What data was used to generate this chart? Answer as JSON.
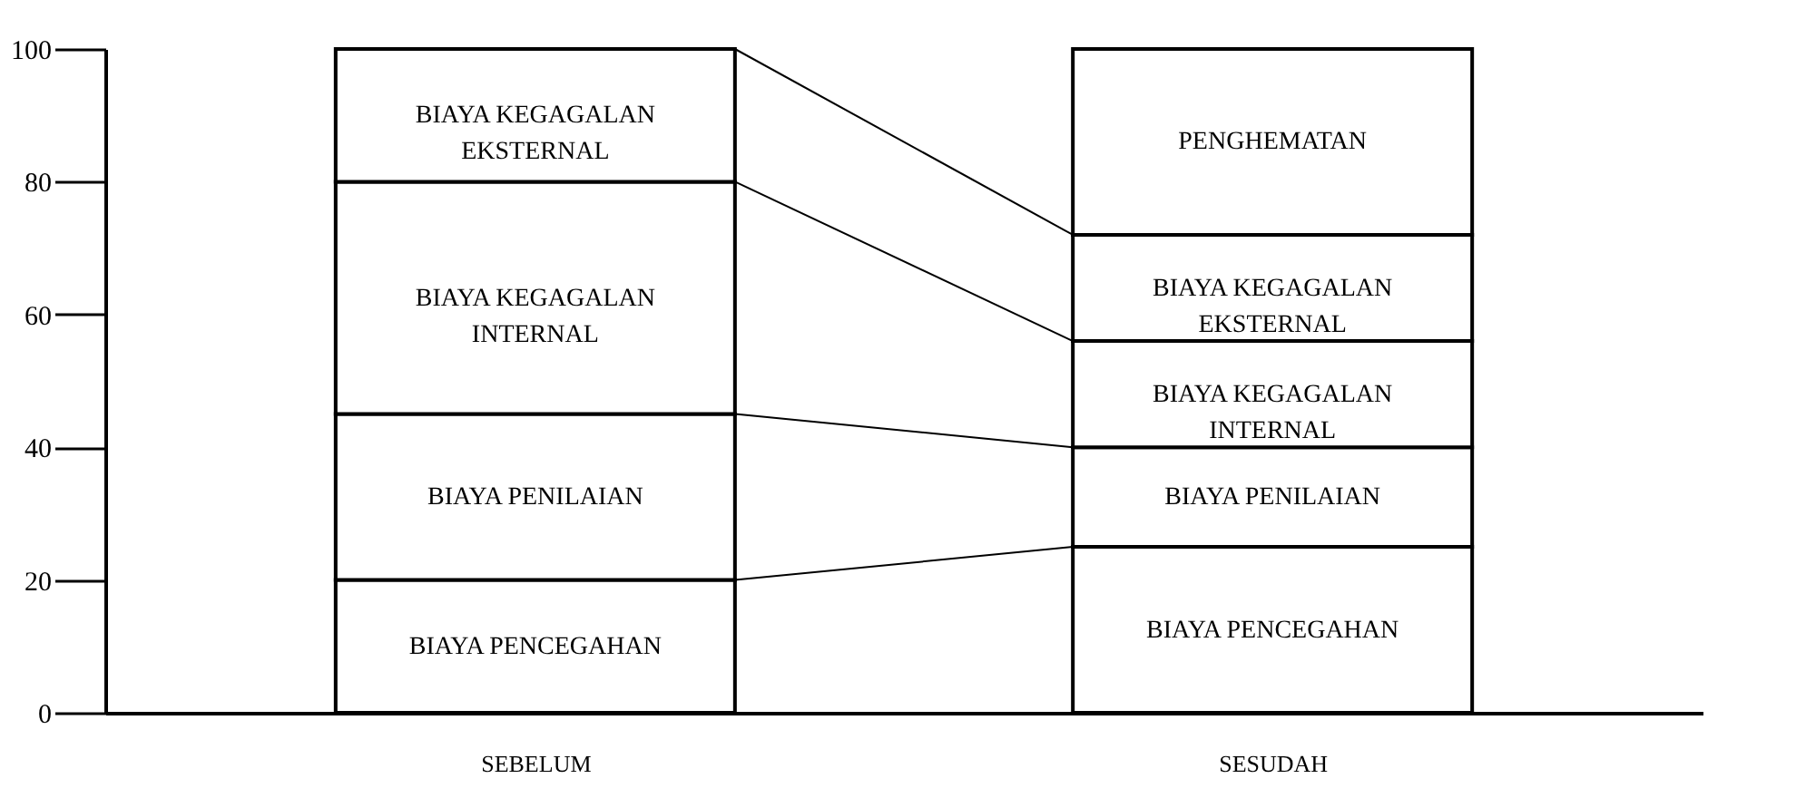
{
  "chart_data": {
    "type": "bar",
    "stacked": true,
    "categories": [
      "SEBELUM",
      "SESUDAH"
    ],
    "series": [
      {
        "name": "BIAYA PENCEGAHAN",
        "color": "#ffffff",
        "values": [
          20,
          25
        ]
      },
      {
        "name": "BIAYA PENILAIAN",
        "color": "#ffffff",
        "values": [
          25,
          15
        ]
      },
      {
        "name": "BIAYA KEGAGALAN INTERNAL",
        "color": "#ffffff",
        "values": [
          35,
          16
        ]
      },
      {
        "name": "BIAYA KEGAGALAN EKSTERNAL",
        "color": "#ffffff",
        "values": [
          20,
          16
        ]
      },
      {
        "name": "PENGHEMATAN",
        "color": "#ffffff",
        "values": [
          null,
          28
        ]
      }
    ],
    "ylim": [
      0,
      100
    ],
    "yticks": [
      0,
      20,
      40,
      60,
      80,
      100
    ],
    "grid": false
  }
}
